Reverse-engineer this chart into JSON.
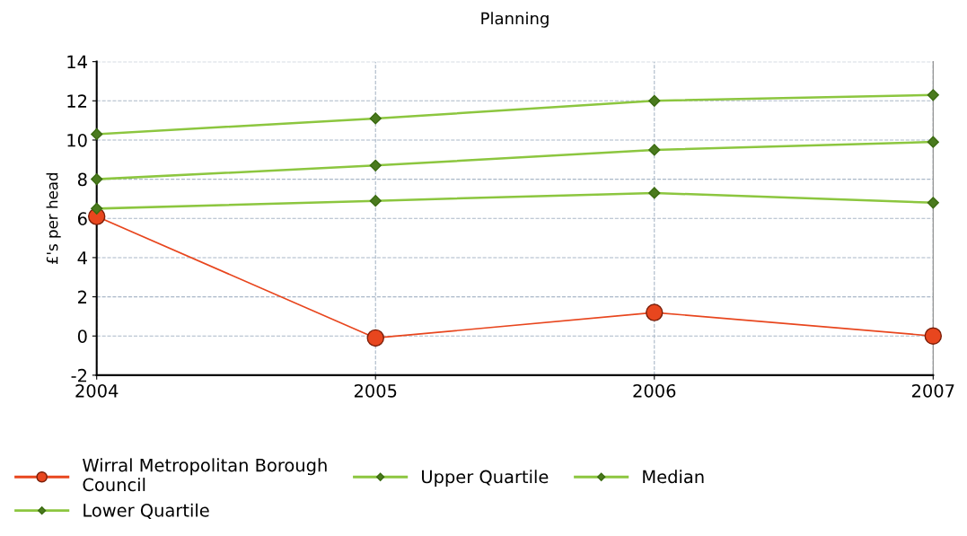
{
  "chart_data": {
    "type": "line",
    "title": "Planning",
    "ylabel": "£'s per head",
    "x": [
      2004,
      2005,
      2006,
      2007
    ],
    "xlim": [
      2004,
      2007
    ],
    "xticks": [
      2004,
      2005,
      2006,
      2007
    ],
    "ylim": [
      -2,
      14
    ],
    "yticks": [
      -2,
      0,
      2,
      4,
      6,
      8,
      10,
      12,
      14
    ],
    "grid": true,
    "legend": "bottom",
    "series": [
      {
        "name": "Wirral Metropolitan Borough Council",
        "color": "#e8461e",
        "marker": "circle",
        "values": [
          6.1,
          -0.1,
          1.2,
          0.0
        ]
      },
      {
        "name": "Lower Quartile",
        "color": "#8cc63f",
        "marker": "diamond",
        "values": [
          6.5,
          6.9,
          7.3,
          6.8
        ]
      },
      {
        "name": "Upper Quartile",
        "color": "#8cc63f",
        "marker": "diamond",
        "values": [
          10.3,
          11.1,
          12.0,
          12.3
        ]
      },
      {
        "name": "Median",
        "color": "#8cc63f",
        "marker": "diamond",
        "values": [
          8.0,
          8.7,
          9.5,
          9.9
        ]
      }
    ]
  }
}
